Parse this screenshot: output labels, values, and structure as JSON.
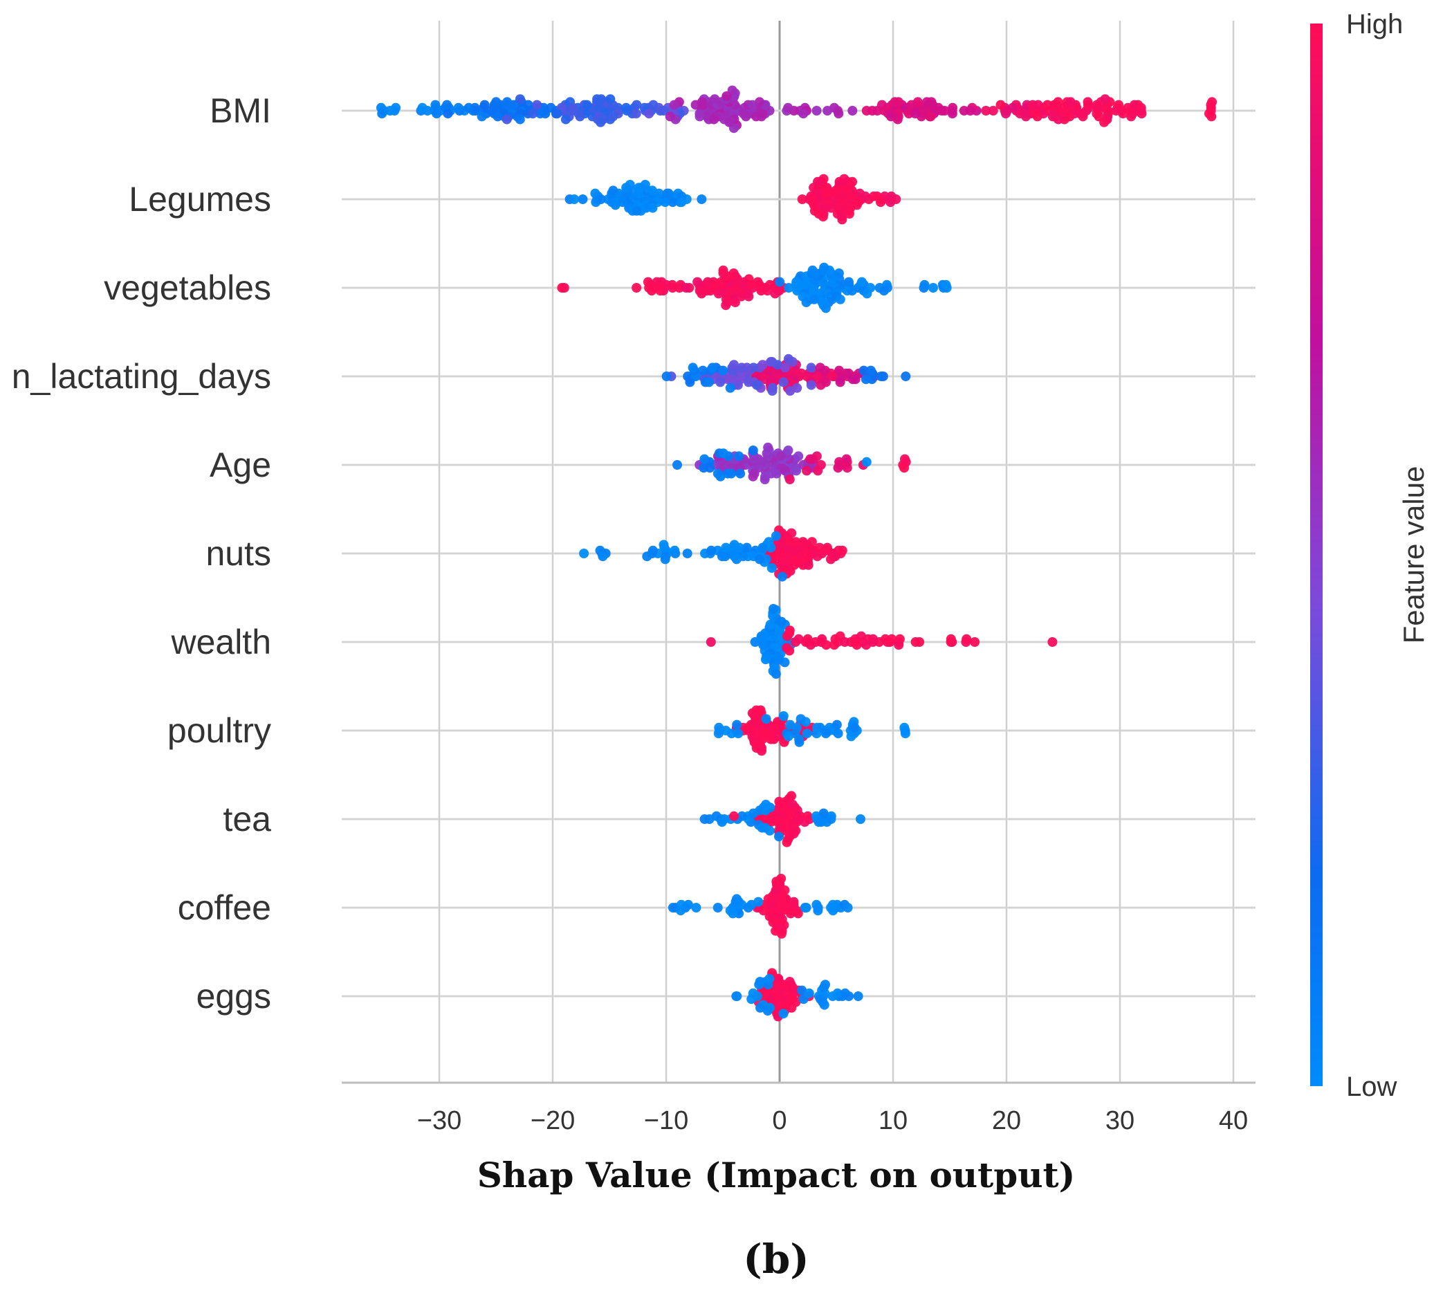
{
  "chart_data": {
    "type": "scatter",
    "subtype": "shap-beeswarm",
    "xlabel": "Shap Value (Impact on output)",
    "xlim": [
      -38,
      42
    ],
    "xticks": [
      -30,
      -20,
      -10,
      0,
      10,
      20,
      30,
      40
    ],
    "xtick_labels": [
      "−30",
      "−20",
      "−10",
      "0",
      "10",
      "20",
      "30",
      "40"
    ],
    "features": [
      "BMI",
      "Legumes",
      "vegetables",
      "n_lactating_days",
      "Age",
      "nuts",
      "wealth",
      "poultry",
      "tea",
      "coffee",
      "eggs"
    ],
    "colorbar": {
      "title": "Feature value",
      "high_label": "High",
      "low_label": "Low",
      "low_color": "#1E88E5",
      "high_color": "#FF0D57"
    },
    "panel_label": "(b)",
    "clusters": {
      "BMI": [
        {
          "c": -34.5,
          "s": 0.6,
          "n": 6,
          "v": 0.02
        },
        {
          "c": -29.5,
          "s": 1.2,
          "n": 14,
          "v": 0.05
        },
        {
          "c": -24,
          "s": 2.2,
          "n": 55,
          "v": 0.15
        },
        {
          "c": -16,
          "s": 2.3,
          "n": 65,
          "v": 0.3
        },
        {
          "c": -10,
          "s": 1.2,
          "n": 14,
          "v": 0.35
        },
        {
          "c": -4,
          "s": 2.0,
          "n": 80,
          "v": 0.6
        },
        {
          "c": 3,
          "s": 2.0,
          "n": 12,
          "v": 0.62
        },
        {
          "c": 13,
          "s": 2.5,
          "n": 55,
          "v": 0.82
        },
        {
          "c": 20,
          "s": 1.5,
          "n": 18,
          "v": 0.92
        },
        {
          "c": 26,
          "s": 2.5,
          "n": 65,
          "v": 0.98
        },
        {
          "c": 31,
          "s": 1.0,
          "n": 12,
          "v": 1.0
        },
        {
          "c": 38,
          "s": 0.1,
          "n": 6,
          "v": 1.0
        }
      ],
      "Legumes": [
        {
          "c": -12.5,
          "s": 2.3,
          "n": 75,
          "v": 0.02
        },
        {
          "c": -19,
          "s": 0.5,
          "n": 2,
          "v": 0.02
        },
        {
          "c": 5,
          "s": 1.4,
          "n": 85,
          "v": 1.0
        },
        {
          "c": 9,
          "s": 0.8,
          "n": 10,
          "v": 0.98
        }
      ],
      "vegetables": [
        {
          "c": -4,
          "s": 2.3,
          "n": 80,
          "v": 0.98
        },
        {
          "c": -11,
          "s": 1.0,
          "n": 12,
          "v": 1.0
        },
        {
          "c": -19,
          "s": 0.3,
          "n": 2,
          "v": 1.0
        },
        {
          "c": 3.5,
          "s": 1.3,
          "n": 80,
          "v": 0.02
        },
        {
          "c": 7.5,
          "s": 1.2,
          "n": 12,
          "v": 0.02
        },
        {
          "c": 15,
          "s": 1.2,
          "n": 7,
          "v": 0.02
        }
      ],
      "n_lactating_days": [
        {
          "c": 1,
          "s": 2.3,
          "n": 70,
          "v": 0.9
        },
        {
          "c": -3,
          "s": 2.5,
          "n": 55,
          "v": 0.4
        },
        {
          "c": -7,
          "s": 1.3,
          "n": 15,
          "v": 0.1
        },
        {
          "c": 6,
          "s": 1.5,
          "n": 15,
          "v": 0.8
        },
        {
          "c": 8,
          "s": 0.8,
          "n": 8,
          "v": 0.15
        }
      ],
      "Age": [
        {
          "c": -1,
          "s": 2.3,
          "n": 90,
          "v": 0.55
        },
        {
          "c": -5,
          "s": 1.3,
          "n": 15,
          "v": 0.1
        },
        {
          "c": 4,
          "s": 1.5,
          "n": 15,
          "v": 0.9
        },
        {
          "c": 11,
          "s": 0.1,
          "n": 4,
          "v": 1.0
        },
        {
          "c": 8,
          "s": 0.2,
          "n": 1,
          "v": 0.02
        }
      ],
      "nuts": [
        {
          "c": 0.8,
          "s": 1.0,
          "n": 70,
          "v": 1.0
        },
        {
          "c": 4,
          "s": 1.0,
          "n": 18,
          "v": 1.0
        },
        {
          "c": -4,
          "s": 2.0,
          "n": 40,
          "v": 0.02
        },
        {
          "c": -10.5,
          "s": 1.0,
          "n": 12,
          "v": 0.02
        },
        {
          "c": -16.5,
          "s": 0.7,
          "n": 5,
          "v": 0.02
        }
      ],
      "wealth": [
        {
          "c": -0.5,
          "s": 0.6,
          "n": 60,
          "v": 0.02
        },
        {
          "c": 3,
          "s": 2.5,
          "n": 25,
          "v": 1.0
        },
        {
          "c": 9,
          "s": 2.0,
          "n": 15,
          "v": 1.0
        },
        {
          "c": 15,
          "s": 1.2,
          "n": 6,
          "v": 1.0
        },
        {
          "c": -6,
          "s": 0.1,
          "n": 1,
          "v": 1.0
        },
        {
          "c": 24,
          "s": 0.1,
          "n": 1,
          "v": 1.0
        }
      ],
      "poultry": [
        {
          "c": -1,
          "s": 1.5,
          "n": 70,
          "v": 1.0
        },
        {
          "c": 3,
          "s": 1.8,
          "n": 25,
          "v": 0.02
        },
        {
          "c": 6.5,
          "s": 0.3,
          "n": 6,
          "v": 0.02
        },
        {
          "c": 11,
          "s": 0.1,
          "n": 3,
          "v": 0.02
        },
        {
          "c": -4.5,
          "s": 0.6,
          "n": 6,
          "v": 0.02
        }
      ],
      "tea": [
        {
          "c": 0.5,
          "s": 1.0,
          "n": 60,
          "v": 1.0
        },
        {
          "c": -2,
          "s": 1.5,
          "n": 15,
          "v": 0.02
        },
        {
          "c": 3.5,
          "s": 1.0,
          "n": 10,
          "v": 0.02
        },
        {
          "c": -5.5,
          "s": 1.2,
          "n": 8,
          "v": 0.02
        },
        {
          "c": -4,
          "s": 0.1,
          "n": 1,
          "v": 1.0
        },
        {
          "c": 7,
          "s": 0.1,
          "n": 1,
          "v": 0.02
        }
      ],
      "coffee": [
        {
          "c": 0,
          "s": 0.8,
          "n": 60,
          "v": 1.0
        },
        {
          "c": -3.5,
          "s": 1.0,
          "n": 15,
          "v": 0.02
        },
        {
          "c": 3.5,
          "s": 1.0,
          "n": 12,
          "v": 0.02
        },
        {
          "c": -8.5,
          "s": 0.8,
          "n": 7,
          "v": 0.02
        },
        {
          "c": 6,
          "s": 0.1,
          "n": 1,
          "v": 0.02
        }
      ],
      "eggs": [
        {
          "c": 0,
          "s": 1.0,
          "n": 60,
          "v": 1.0
        },
        {
          "c": -2,
          "s": 1.0,
          "n": 15,
          "v": 0.02
        },
        {
          "c": 4,
          "s": 1.3,
          "n": 18,
          "v": 0.02
        },
        {
          "c": 7,
          "s": 0.1,
          "n": 1,
          "v": 0.02
        }
      ]
    }
  }
}
